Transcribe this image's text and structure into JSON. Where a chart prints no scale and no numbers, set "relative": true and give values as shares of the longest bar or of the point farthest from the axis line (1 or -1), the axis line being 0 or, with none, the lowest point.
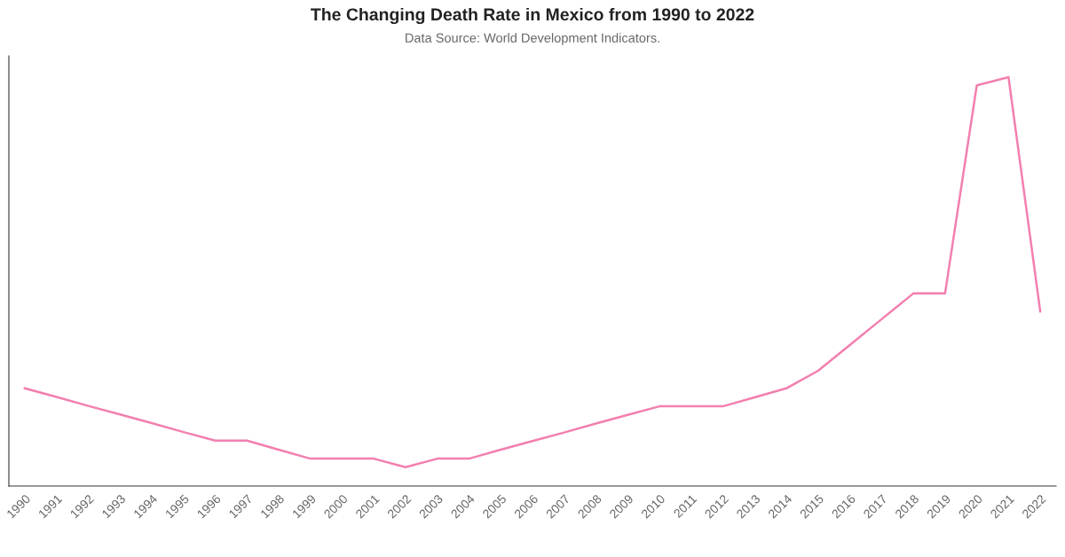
{
  "chart_data": {
    "type": "line",
    "title": "The Changing Death Rate in Mexico from 1990 to 2022",
    "subtitle": "Data Source: World Development Indicators.",
    "relative": true,
    "grid": false,
    "legend": false,
    "marker": "none",
    "line_style": "solid",
    "categories": [
      "1990",
      "1991",
      "1992",
      "1993",
      "1994",
      "1995",
      "1996",
      "1997",
      "1998",
      "1999",
      "2000",
      "2001",
      "2002",
      "2003",
      "2004",
      "2005",
      "2006",
      "2007",
      "2008",
      "2009",
      "2010",
      "2011",
      "2012",
      "2013",
      "2014",
      "2015",
      "2016",
      "2017",
      "2018",
      "2019",
      "2020",
      "2021",
      "2022"
    ],
    "series": [
      {
        "color": "#f37fb0",
        "values": [
          0.239,
          0.218,
          0.196,
          0.175,
          0.154,
          0.132,
          0.111,
          0.111,
          0.089,
          0.067,
          0.067,
          0.067,
          0.046,
          0.067,
          0.067,
          0.089,
          0.11,
          0.131,
          0.153,
          0.174,
          0.195,
          0.195,
          0.195,
          0.217,
          0.239,
          0.282,
          0.345,
          0.408,
          0.471,
          0.471,
          0.98,
          1,
          0.427
        ]
      }
    ]
  }
}
